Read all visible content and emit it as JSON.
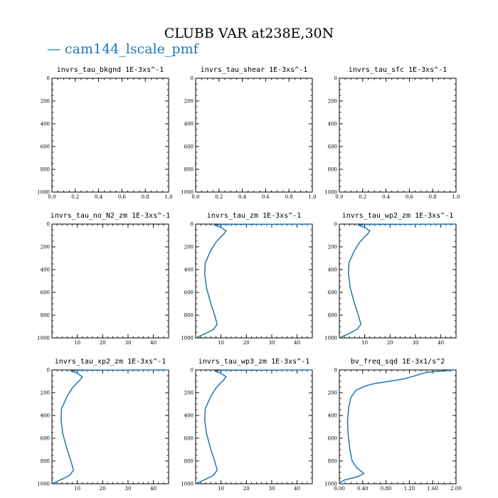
{
  "figure": {
    "title": "CLUBB VAR at238E,30N",
    "legend": [
      {
        "label": "— cam144_lscale_pmf",
        "color": "#1f77b4"
      }
    ]
  },
  "chart_data": [
    {
      "type": "line",
      "title": "invrs_tau_bkgnd   1E-3xs^-1",
      "xlim": [
        0,
        1.0
      ],
      "ylim": [
        0,
        1000
      ],
      "y_inverted": true,
      "xticks": [
        "0.0",
        "0.2",
        "0.4",
        "0.6",
        "0.8",
        "1.0"
      ],
      "yticks": [
        "0",
        "200",
        "400",
        "600",
        "800",
        "1000"
      ],
      "series": []
    },
    {
      "type": "line",
      "title": "invrs_tau_shear   1E-3xs^-1",
      "xlim": [
        0,
        1.0
      ],
      "ylim": [
        0,
        1000
      ],
      "y_inverted": true,
      "xticks": [
        "0.0",
        "0.2",
        "0.4",
        "0.6",
        "0.8",
        "1.0"
      ],
      "yticks": [
        "0",
        "200",
        "400",
        "600",
        "800",
        "1000"
      ],
      "series": []
    },
    {
      "type": "line",
      "title": "invrs_tau_sfc   1E-3xs^-1",
      "xlim": [
        0,
        1.0
      ],
      "ylim": [
        0,
        1000
      ],
      "y_inverted": true,
      "xticks": [
        "0.0",
        "0.2",
        "0.4",
        "0.6",
        "0.8",
        "1.0"
      ],
      "yticks": [
        "0",
        "200",
        "400",
        "600",
        "800",
        "1000"
      ],
      "series": []
    },
    {
      "type": "line",
      "title": "invrs_tau_no_N2_zm   1E-3xs^-1",
      "xlim": [
        0,
        46
      ],
      "ylim": [
        0,
        1000
      ],
      "y_inverted": true,
      "xticks": [
        "10",
        "20",
        "30",
        "40"
      ],
      "yticks": [
        "0",
        "200",
        "400",
        "600",
        "800",
        "1000"
      ],
      "series": []
    },
    {
      "type": "line",
      "title": "invrs_tau_zm   1E-3xs^-1",
      "xlim": [
        0,
        46
      ],
      "ylim": [
        0,
        1000
      ],
      "y_inverted": true,
      "xticks": [
        "10",
        "20",
        "30",
        "40"
      ],
      "yticks": [
        "0",
        "200",
        "400",
        "600",
        "800",
        "1000"
      ],
      "series": [
        {
          "color": "#1f77b4",
          "x": [
            46,
            10,
            7.5,
            10,
            12,
            11,
            10,
            8,
            6,
            3.8,
            3.6,
            4.3,
            6,
            7.5,
            8.5,
            7,
            4,
            0.5
          ],
          "y": [
            0,
            3,
            10,
            30,
            60,
            90,
            110,
            160,
            230,
            340,
            440,
            560,
            700,
            800,
            880,
            925,
            960,
            995
          ]
        }
      ]
    },
    {
      "type": "line",
      "title": "invrs_tau_wp2_zm   1E-3xs^-1",
      "xlim": [
        0,
        46
      ],
      "ylim": [
        0,
        1000
      ],
      "y_inverted": true,
      "xticks": [
        "10",
        "20",
        "30",
        "40"
      ],
      "yticks": [
        "0",
        "200",
        "400",
        "600",
        "800",
        "1000"
      ],
      "series": [
        {
          "color": "#1f77b4",
          "x": [
            46,
            10,
            7.5,
            10,
            12,
            11,
            10,
            8,
            6,
            3.8,
            3.6,
            4.3,
            6,
            7.5,
            8.5,
            7,
            4,
            0.5
          ],
          "y": [
            0,
            3,
            10,
            30,
            60,
            90,
            110,
            160,
            230,
            340,
            440,
            560,
            700,
            800,
            880,
            925,
            960,
            995
          ]
        }
      ]
    },
    {
      "type": "line",
      "title": "invrs_tau_xp2_zm   1E-3xs^-1",
      "xlim": [
        0,
        46
      ],
      "ylim": [
        0,
        1000
      ],
      "y_inverted": true,
      "xticks": [
        "10",
        "20",
        "30",
        "40"
      ],
      "yticks": [
        "0",
        "200",
        "400",
        "600",
        "800",
        "1000"
      ],
      "series": [
        {
          "color": "#1f77b4",
          "x": [
            46,
            10,
            7.5,
            10,
            12,
            11,
            10,
            8,
            6,
            3.8,
            3.6,
            4.3,
            6,
            7.5,
            8.5,
            7,
            4,
            0.5
          ],
          "y": [
            0,
            3,
            10,
            30,
            60,
            90,
            110,
            160,
            230,
            340,
            440,
            560,
            700,
            800,
            880,
            925,
            960,
            995
          ]
        }
      ]
    },
    {
      "type": "line",
      "title": "invrs_tau_wp3_zm   1E-3xs^-1",
      "xlim": [
        0,
        46
      ],
      "ylim": [
        0,
        1000
      ],
      "y_inverted": true,
      "xticks": [
        "10",
        "20",
        "30",
        "40"
      ],
      "yticks": [
        "0",
        "200",
        "400",
        "600",
        "800",
        "1000"
      ],
      "series": [
        {
          "color": "#1f77b4",
          "x": [
            46,
            10,
            7.5,
            10,
            12,
            11,
            10,
            8,
            6,
            3.8,
            3.6,
            4.3,
            6,
            7.5,
            8.5,
            7,
            4,
            0.5
          ],
          "y": [
            0,
            3,
            10,
            30,
            60,
            90,
            110,
            160,
            230,
            340,
            440,
            560,
            700,
            800,
            880,
            925,
            960,
            995
          ]
        }
      ]
    },
    {
      "type": "line",
      "title": "bv_freq_sqd   1E-3x1/s^2",
      "xlim": [
        0,
        2.0
      ],
      "ylim": [
        0,
        1000
      ],
      "y_inverted": true,
      "xticks": [
        "0.00",
        "0.40",
        "0.80",
        "1.20",
        "1.60",
        "2.00"
      ],
      "yticks": [
        "0",
        "200",
        "400",
        "600",
        "800",
        "1000"
      ],
      "series": [
        {
          "color": "#1f77b4",
          "x": [
            2.0,
            1.5,
            1.1,
            0.6,
            0.45,
            0.28,
            0.2,
            0.16,
            0.14,
            0.15,
            0.18,
            0.22,
            0.3,
            0.42,
            0.3,
            0.1,
            0.0
          ],
          "y": [
            0,
            20,
            80,
            120,
            140,
            180,
            240,
            330,
            450,
            560,
            700,
            800,
            860,
            910,
            940,
            965,
            990
          ]
        }
      ]
    }
  ]
}
